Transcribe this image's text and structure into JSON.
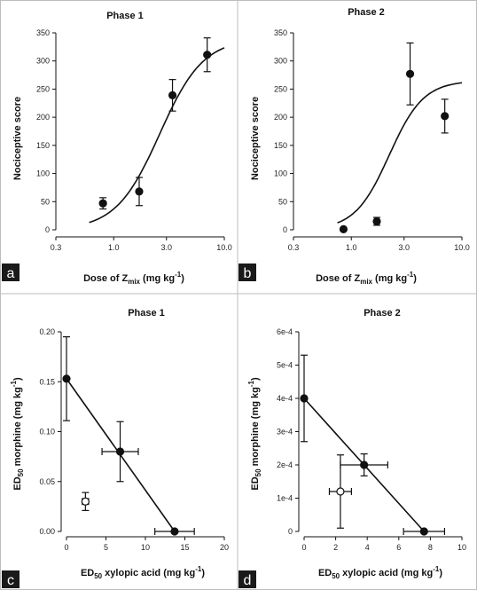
{
  "figure": {
    "panels": [
      {
        "letter": "a",
        "title": "Phase 1",
        "ylabel": "Nociceptive score",
        "xlabel_prefix": "Dose of Z",
        "xlabel_sub": "mix",
        "xlabel_suffix": " (mg kg",
        "xlabel_sup": "-1",
        "xlabel_end": ")"
      },
      {
        "letter": "b",
        "title": "Phase 2",
        "ylabel": "Nociceptive score",
        "xlabel_prefix": "Dose of Z",
        "xlabel_sub": "mix",
        "xlabel_suffix": " (mg kg",
        "xlabel_sup": "-1",
        "xlabel_end": ")"
      },
      {
        "letter": "c",
        "title": "Phase 1",
        "ylabel_pre": "ED",
        "ylabel_sub": "50",
        "ylabel_mid": " morphine (mg kg",
        "ylabel_sup": "-1",
        "ylabel_end": ")",
        "xlabel_pre": "ED",
        "xlabel_sub": "50",
        "xlabel_mid": " xylopic acid (mg kg",
        "xlabel_sup": "-1",
        "xlabel_end": ")"
      },
      {
        "letter": "d",
        "title": "Phase 2",
        "ylabel_pre": "ED",
        "ylabel_sub": "50",
        "ylabel_mid": " morphine (mg kg",
        "ylabel_sup": "-1",
        "ylabel_end": ")",
        "xlabel_pre": "ED",
        "xlabel_sub": "50",
        "xlabel_mid": " xylopic acid (mg kg",
        "xlabel_sup": "-1",
        "xlabel_end": ")"
      }
    ]
  },
  "chart_data": [
    {
      "panel": "a",
      "type": "scatter",
      "title": "Phase 1",
      "xlabel": "Dose of Zmix (mg kg-1)",
      "ylabel": "Nociceptive score",
      "xscale": "log",
      "xlim": [
        0.3,
        10.0
      ],
      "ylim": [
        0,
        350
      ],
      "xticks": [
        0.3,
        1.0,
        3.0,
        10.0
      ],
      "xtick_labels": [
        "0.3",
        "1.0",
        "3.0",
        "10.0"
      ],
      "yticks": [
        0,
        50,
        100,
        150,
        200,
        250,
        300,
        350
      ],
      "ytick_labels": [
        "0",
        "50",
        "100",
        "150",
        "200",
        "250",
        "300",
        "350"
      ],
      "points": [
        {
          "x": 0.8,
          "y": 47,
          "err": 10
        },
        {
          "x": 1.7,
          "y": 68,
          "err": 25
        },
        {
          "x": 3.4,
          "y": 239,
          "err": 28
        },
        {
          "x": 7.0,
          "y": 311,
          "err": 30
        }
      ],
      "fit": {
        "form": "sigmoid",
        "bottom": 0,
        "top": 340,
        "ec50": 2.6,
        "hill": 2.2,
        "x_range": [
          0.6,
          10.0
        ]
      }
    },
    {
      "panel": "b",
      "type": "scatter",
      "title": "Phase 2",
      "xlabel": "Dose of Zmix (mg kg-1)",
      "ylabel": "Nociceptive score",
      "xscale": "log",
      "xlim": [
        0.3,
        10.0
      ],
      "ylim": [
        0,
        350
      ],
      "xticks": [
        0.3,
        1.0,
        3.0,
        10.0
      ],
      "xtick_labels": [
        "0.3",
        "1.0",
        "3.0",
        "10.0"
      ],
      "yticks": [
        0,
        50,
        100,
        150,
        200,
        250,
        300,
        350
      ],
      "ytick_labels": [
        "0",
        "50",
        "100",
        "150",
        "200",
        "250",
        "300",
        "350"
      ],
      "points": [
        {
          "x": 0.85,
          "y": 1,
          "err": 0
        },
        {
          "x": 1.7,
          "y": 15,
          "err": 7
        },
        {
          "x": 3.4,
          "y": 277,
          "err": 55
        },
        {
          "x": 7.0,
          "y": 202,
          "err": 30
        }
      ],
      "fit": {
        "form": "sigmoid",
        "bottom": 0,
        "top": 265,
        "ec50": 2.2,
        "hill": 2.8,
        "x_range": [
          0.75,
          10.0
        ]
      }
    },
    {
      "panel": "c",
      "type": "scatter",
      "title": "Phase 1",
      "xlabel": "ED50 xylopic acid (mg kg-1)",
      "ylabel": "ED50 morphine (mg kg-1)",
      "xlim": [
        0,
        20
      ],
      "ylim": [
        0,
        0.2
      ],
      "xticks": [
        0,
        5,
        10,
        15,
        20
      ],
      "xtick_labels": [
        "0",
        "5",
        "10",
        "15",
        "20"
      ],
      "yticks": [
        0,
        0.05,
        0.1,
        0.15,
        0.2
      ],
      "ytick_labels": [
        "0.00",
        "0.05",
        "0.10",
        "0.15",
        "0.20"
      ],
      "points": [
        {
          "x": 0,
          "y": 0.153,
          "xerr": 0,
          "yerr": 0.042,
          "filled": true
        },
        {
          "x": 6.8,
          "y": 0.08,
          "xerr": 2.3,
          "yerr": 0.03,
          "filled": true
        },
        {
          "x": 13.7,
          "y": 0.0,
          "xerr": 2.5,
          "yerr": 0,
          "filled": true
        },
        {
          "x": 2.4,
          "y": 0.03,
          "xerr": 0.4,
          "yerr": 0.009,
          "filled": false
        }
      ],
      "line": [
        [
          0,
          0.153
        ],
        [
          13.7,
          0.0
        ]
      ]
    },
    {
      "panel": "d",
      "type": "scatter",
      "title": "Phase 2",
      "xlabel": "ED50 xylopic acid (mg kg-1)",
      "ylabel": "ED50 morphine (mg kg-1)",
      "xlim": [
        0,
        10
      ],
      "ylim": [
        0,
        0.0006
      ],
      "xticks": [
        0,
        2,
        4,
        6,
        8,
        10
      ],
      "xtick_labels": [
        "0",
        "2",
        "4",
        "6",
        "8",
        "10"
      ],
      "yticks": [
        0,
        0.0001,
        0.0002,
        0.0003,
        0.0004,
        0.0005,
        0.0006
      ],
      "ytick_labels": [
        "0",
        "1e-4",
        "2e-4",
        "3e-4",
        "4e-4",
        "5e-4",
        "6e-4"
      ],
      "points": [
        {
          "x": 0,
          "y": 0.0004,
          "xerr": 0,
          "yerr": 0.00013,
          "filled": true
        },
        {
          "x": 3.8,
          "y": 0.0002,
          "xerr": 1.5,
          "yerr": 3.3e-05,
          "filled": true
        },
        {
          "x": 7.6,
          "y": 0.0,
          "xerr": 1.3,
          "yerr": 0,
          "filled": true
        },
        {
          "x": 2.3,
          "y": 0.00012,
          "xerr": 0.7,
          "yerr": 0.00011,
          "filled": false
        }
      ],
      "line": [
        [
          0,
          0.0004
        ],
        [
          7.6,
          0.0
        ]
      ]
    }
  ]
}
